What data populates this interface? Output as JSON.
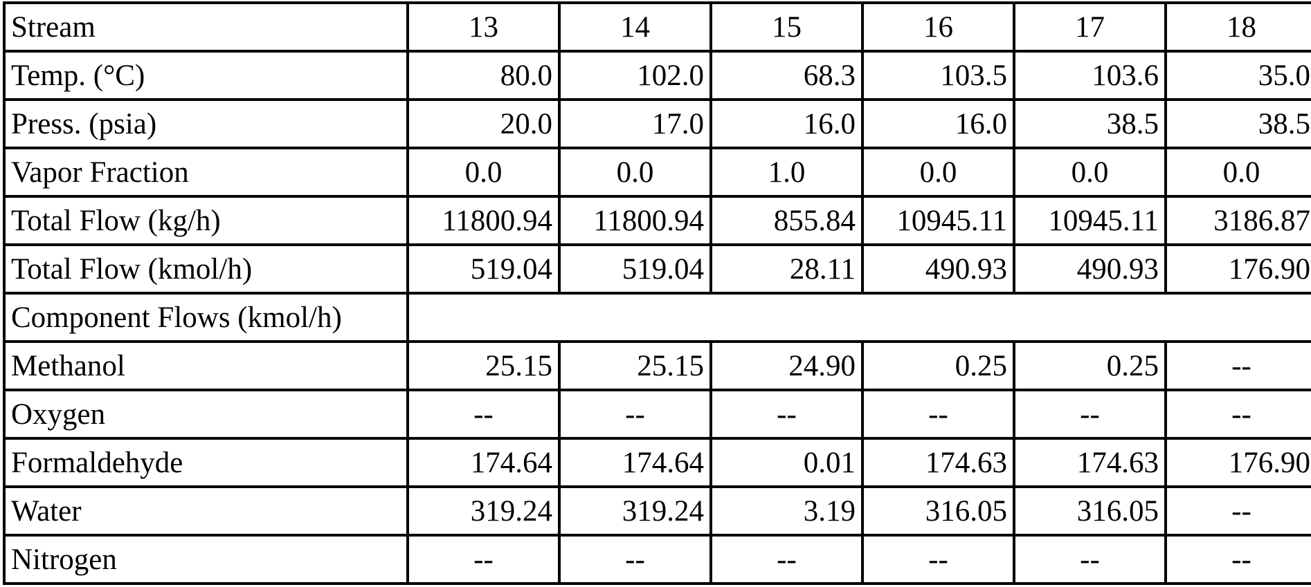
{
  "table": {
    "corner_label": "Stream",
    "columns": [
      "13",
      "14",
      "15",
      "16",
      "17",
      "18"
    ],
    "rows": [
      {
        "label": "Temp. (°C)",
        "align": "right",
        "values": [
          "80.0",
          "102.0",
          "68.3",
          "103.5",
          "103.6",
          "35.0"
        ]
      },
      {
        "label": "Press. (psia)",
        "align": "right",
        "values": [
          "20.0",
          "17.0",
          "16.0",
          "16.0",
          "38.5",
          "38.5"
        ]
      },
      {
        "label": "Vapor Fraction",
        "align": "center",
        "values": [
          "0.0",
          "0.0",
          "1.0",
          "0.0",
          "0.0",
          "0.0"
        ]
      },
      {
        "label": "Total Flow (kg/h)",
        "align": "right",
        "values": [
          "11800.94",
          "11800.94",
          "855.84",
          "10945.11",
          "10945.11",
          "3186.87"
        ]
      },
      {
        "label": "Total Flow (kmol/h)",
        "align": "right",
        "values": [
          "519.04",
          "519.04",
          "28.11",
          "490.93",
          "490.93",
          "176.90"
        ]
      },
      {
        "label": "Component Flows (kmol/h)",
        "section": true,
        "values": []
      },
      {
        "label": "Methanol",
        "align": "right",
        "values": [
          "25.15",
          "25.15",
          "24.90",
          "0.25",
          "0.25",
          "--"
        ]
      },
      {
        "label": "Oxygen",
        "align": "right",
        "values": [
          "--",
          "--",
          "--",
          "--",
          "--",
          "--"
        ]
      },
      {
        "label": "Formaldehyde",
        "align": "right",
        "values": [
          "174.64",
          "174.64",
          "0.01",
          "174.63",
          "174.63",
          "176.90"
        ]
      },
      {
        "label": "Water",
        "align": "right",
        "values": [
          "319.24",
          "319.24",
          "3.19",
          "316.05",
          "316.05",
          "--"
        ]
      },
      {
        "label": "Nitrogen",
        "align": "right",
        "values": [
          "--",
          "--",
          "--",
          "--",
          "--",
          "--"
        ]
      }
    ],
    "missing_value_symbol": "--",
    "colors": {
      "border": "#000000",
      "text": "#000000",
      "background": "#ffffff"
    }
  }
}
